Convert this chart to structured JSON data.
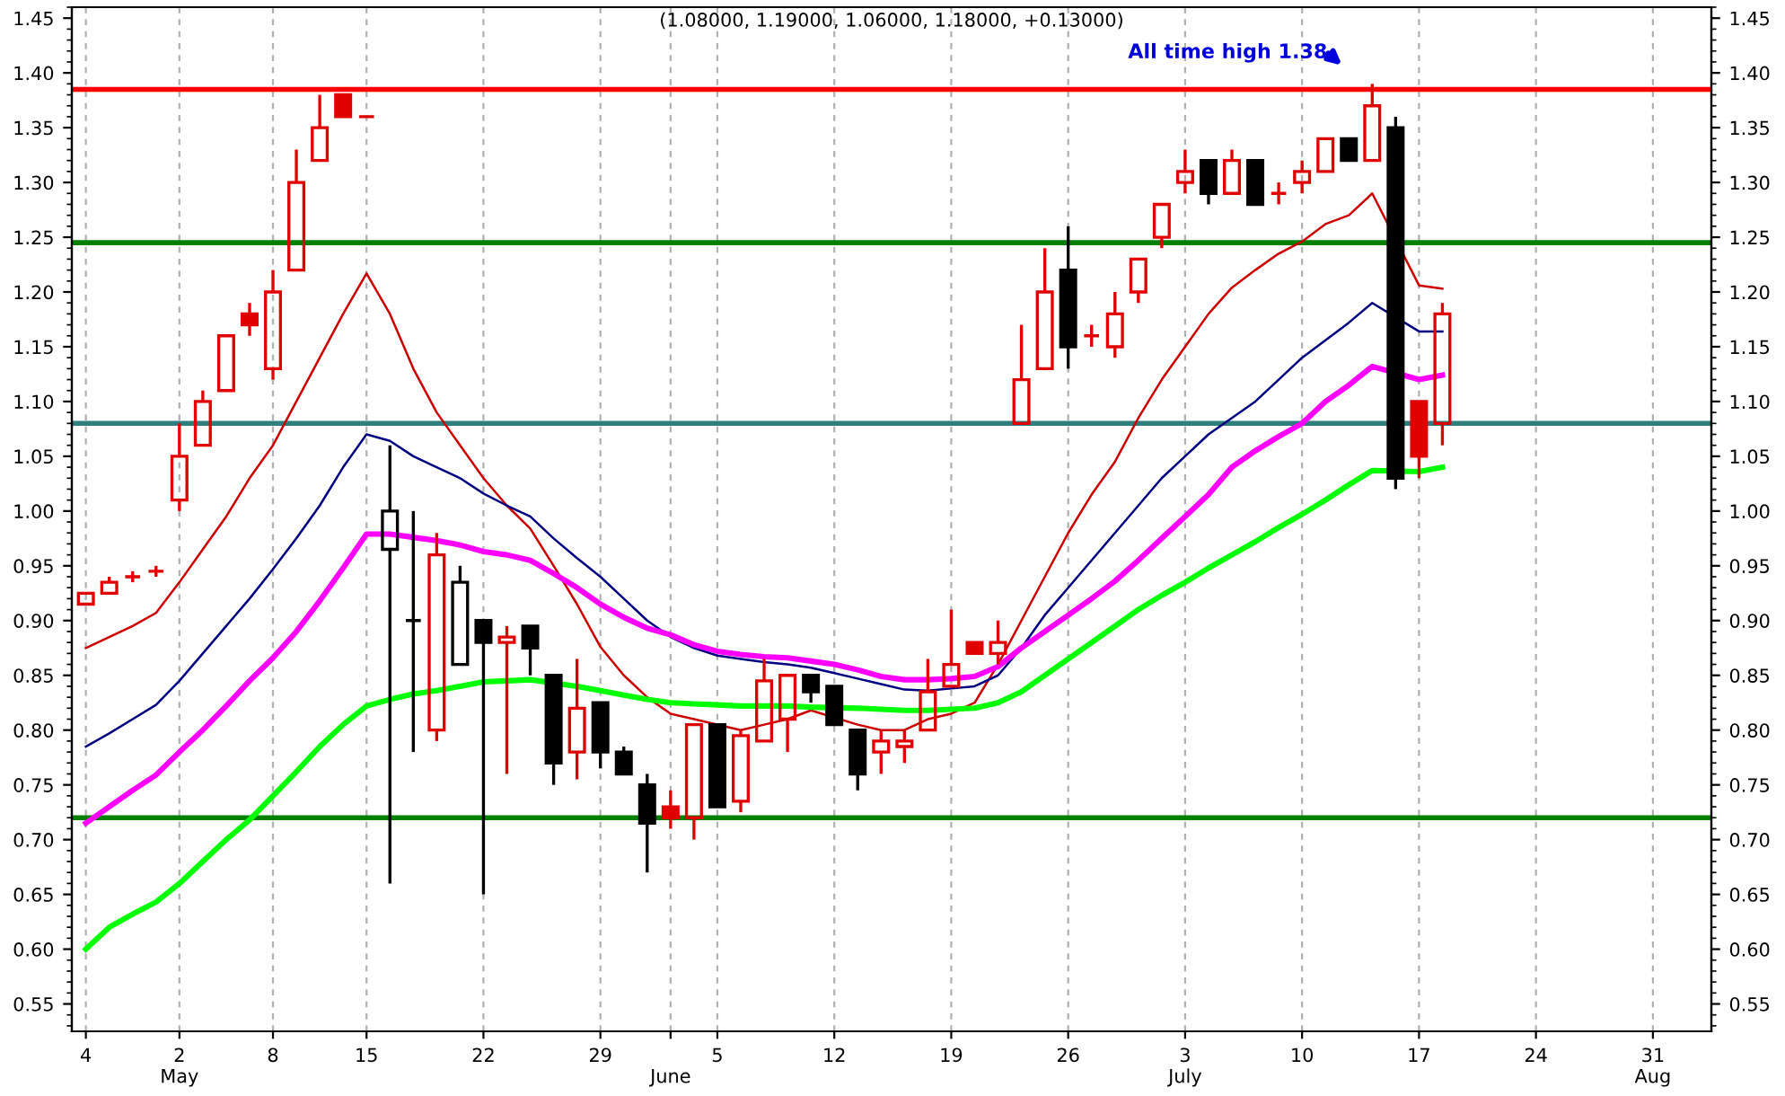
{
  "chart_data": {
    "type": "candlestick",
    "title": "(1.08000, 1.19000, 1.06000, 1.18000, +0.13000)",
    "annotations": [
      "All time high 1.38"
    ],
    "categories": [
      "4",
      null,
      null,
      null,
      "2\nMay",
      null,
      null,
      null,
      "8",
      null,
      null,
      null,
      "15",
      null,
      null,
      null,
      null,
      "22",
      null,
      null,
      null,
      null,
      "29",
      null,
      null,
      "\nJune",
      null,
      "5",
      null,
      null,
      null,
      null,
      "12",
      null,
      null,
      null,
      null,
      "19",
      null,
      null,
      null,
      null,
      "26",
      null,
      null,
      null,
      null,
      "3\nJuly",
      null,
      null,
      null,
      null,
      "10",
      null,
      null,
      null,
      null,
      "17",
      null,
      null,
      null,
      null,
      "24",
      null,
      null,
      null,
      null,
      "31\nAug",
      null,
      null
    ],
    "ohlc": [
      [
        0.915,
        0.925,
        0.915,
        0.925
      ],
      [
        0.925,
        0.94,
        0.925,
        0.935
      ],
      [
        0.94,
        0.945,
        0.935,
        0.94
      ],
      [
        0.945,
        0.95,
        0.94,
        0.945
      ],
      [
        1.01,
        1.08,
        1.0,
        1.05
      ],
      [
        1.06,
        1.11,
        1.06,
        1.1
      ],
      [
        1.11,
        1.16,
        1.11,
        1.16
      ],
      [
        1.18,
        1.19,
        1.16,
        1.17
      ],
      [
        1.13,
        1.22,
        1.12,
        1.2
      ],
      [
        1.22,
        1.33,
        1.22,
        1.3
      ],
      [
        1.32,
        1.38,
        1.32,
        1.35
      ],
      [
        1.38,
        1.38,
        1.36,
        1.36
      ],
      [
        1.36,
        1.36,
        1.36,
        1.36
      ],
      [
        0.965,
        1.06,
        0.66,
        1.0
      ],
      [
        0.9,
        1.0,
        0.78,
        0.9
      ],
      [
        0.8,
        0.98,
        0.79,
        0.96
      ],
      [
        0.86,
        0.95,
        0.86,
        0.935
      ],
      [
        0.9,
        0.9,
        0.65,
        0.88
      ],
      [
        0.88,
        0.895,
        0.76,
        0.885
      ],
      [
        0.895,
        0.895,
        0.85,
        0.875
      ],
      [
        0.85,
        0.85,
        0.75,
        0.77
      ],
      [
        0.78,
        0.865,
        0.755,
        0.82
      ],
      [
        0.825,
        0.825,
        0.765,
        0.78
      ],
      [
        0.78,
        0.785,
        0.76,
        0.76
      ],
      [
        0.75,
        0.76,
        0.67,
        0.715
      ],
      [
        0.73,
        0.745,
        0.71,
        0.72
      ],
      [
        0.72,
        0.805,
        0.7,
        0.805
      ],
      [
        0.805,
        0.805,
        0.73,
        0.73
      ],
      [
        0.735,
        0.8,
        0.725,
        0.795
      ],
      [
        0.79,
        0.865,
        0.79,
        0.845
      ],
      [
        0.81,
        0.85,
        0.78,
        0.85
      ],
      [
        0.85,
        0.85,
        0.825,
        0.835
      ],
      [
        0.84,
        0.84,
        0.805,
        0.805
      ],
      [
        0.8,
        0.8,
        0.745,
        0.76
      ],
      [
        0.78,
        0.8,
        0.76,
        0.79
      ],
      [
        0.785,
        0.8,
        0.77,
        0.79
      ],
      [
        0.8,
        0.865,
        0.8,
        0.835
      ],
      [
        0.84,
        0.91,
        0.84,
        0.86
      ],
      [
        0.88,
        0.88,
        0.87,
        0.87
      ],
      [
        0.87,
        0.9,
        0.86,
        0.88
      ],
      [
        1.08,
        1.17,
        1.08,
        1.12
      ],
      [
        1.13,
        1.24,
        1.13,
        1.2
      ],
      [
        1.22,
        1.26,
        1.13,
        1.15
      ],
      [
        1.16,
        1.17,
        1.15,
        1.16
      ],
      [
        1.15,
        1.2,
        1.14,
        1.18
      ],
      [
        1.2,
        1.23,
        1.19,
        1.23
      ],
      [
        1.25,
        1.28,
        1.24,
        1.28
      ],
      [
        1.3,
        1.33,
        1.29,
        1.31
      ],
      [
        1.32,
        1.32,
        1.28,
        1.29
      ],
      [
        1.29,
        1.33,
        1.29,
        1.32
      ],
      [
        1.32,
        1.32,
        1.28,
        1.28
      ],
      [
        1.29,
        1.3,
        1.28,
        1.29
      ],
      [
        1.3,
        1.32,
        1.29,
        1.31
      ],
      [
        1.31,
        1.34,
        1.31,
        1.34
      ],
      [
        1.34,
        1.34,
        1.32,
        1.32
      ],
      [
        1.32,
        1.39,
        1.32,
        1.37
      ],
      [
        1.35,
        1.36,
        1.02,
        1.03
      ],
      [
        1.1,
        1.1,
        1.03,
        1.05
      ],
      [
        1.08,
        1.19,
        1.06,
        1.18
      ],
      null,
      null,
      null,
      null,
      null,
      null,
      null,
      null,
      null,
      null,
      null
    ],
    "colors": [
      "#e00000",
      "#e00000",
      "#e00000",
      "#e00000",
      "#e00000",
      "#e00000",
      "#e00000",
      "#e00000",
      "#e00000",
      "#e00000",
      "#e00000",
      "#e00000",
      "#e00000",
      "#000000",
      "#000000",
      "#e00000",
      "#000000",
      "#000000",
      "#e00000",
      "#000000",
      "#000000",
      "#e00000",
      "#000000",
      "#000000",
      "#000000",
      "#e00000",
      "#e00000",
      "#000000",
      "#e00000",
      "#e00000",
      "#e00000",
      "#000000",
      "#000000",
      "#000000",
      "#e00000",
      "#e00000",
      "#e00000",
      "#e00000",
      "#e00000",
      "#e00000",
      "#e00000",
      "#e00000",
      "#000000",
      "#e00000",
      "#e00000",
      "#e00000",
      "#e00000",
      "#e00000",
      "#000000",
      "#e00000",
      "#000000",
      "#e00000",
      "#e00000",
      "#e00000",
      "#000000",
      "#e00000",
      "#000000",
      "#e00000",
      "#e00000",
      null,
      null,
      null,
      null,
      null,
      null,
      null,
      null,
      null,
      null,
      null
    ],
    "series": [
      {
        "type": "line",
        "color": "#cc0000",
        "values": [
          0.875,
          0.885,
          0.895,
          0.907,
          0.935,
          0.965,
          0.995,
          1.03,
          1.06,
          1.1,
          1.14,
          1.18,
          1.217,
          1.18,
          1.13,
          1.09,
          1.06,
          1.03,
          1.005,
          0.984,
          0.95,
          0.915,
          0.876,
          0.85,
          0.83,
          0.815,
          0.81,
          null,
          0.8,
          0.805,
          0.81,
          0.818,
          null,
          0.805,
          0.8,
          0.8,
          0.81,
          0.815,
          0.825,
          0.86,
          0.9,
          0.94,
          0.98,
          1.015,
          1.045,
          1.085,
          1.12,
          1.15,
          1.18,
          1.204,
          1.22,
          1.235,
          1.246,
          1.262,
          1.27,
          1.29,
          null,
          1.206,
          1.203,
          null,
          null,
          null,
          null,
          null,
          null,
          null,
          null,
          null,
          null,
          null
        ]
      },
      {
        "type": "line",
        "color": "#000080",
        "values": [
          0.785,
          0.797,
          0.81,
          0.823,
          0.845,
          0.87,
          0.895,
          0.92,
          0.947,
          0.975,
          1.005,
          1.04,
          1.07,
          1.064,
          1.05,
          1.04,
          1.03,
          1.016,
          1.005,
          0.995,
          0.975,
          0.957,
          0.94,
          0.92,
          0.9,
          0.885,
          0.875,
          0.868,
          0.865,
          0.862,
          0.86,
          0.857,
          0.852,
          0.847,
          0.842,
          0.837,
          0.836,
          0.838,
          0.84,
          0.85,
          0.875,
          0.905,
          0.93,
          0.955,
          0.98,
          1.005,
          1.03,
          1.05,
          1.07,
          1.085,
          1.1,
          1.12,
          1.14,
          1.156,
          1.172,
          1.19,
          null,
          1.164,
          1.164,
          null,
          null,
          null,
          null,
          null,
          null,
          null,
          null,
          null,
          null,
          null
        ]
      },
      {
        "type": "line",
        "color": "#ff00ff",
        "values": [
          0.715,
          0.73,
          0.745,
          0.759,
          0.78,
          0.8,
          0.822,
          0.845,
          0.866,
          0.89,
          0.918,
          0.948,
          0.979,
          0.979,
          0.976,
          0.973,
          0.969,
          0.963,
          0.96,
          0.955,
          0.943,
          0.93,
          0.915,
          0.903,
          0.893,
          0.887,
          0.878,
          0.872,
          0.869,
          0.867,
          0.866,
          0.863,
          0.86,
          0.855,
          0.849,
          0.846,
          0.846,
          0.847,
          0.849,
          0.858,
          0.875,
          0.89,
          0.905,
          0.92,
          0.936,
          0.955,
          0.975,
          0.995,
          1.015,
          1.04,
          1.055,
          1.068,
          1.08,
          1.1,
          1.115,
          1.132,
          null,
          1.12,
          1.124,
          null,
          null,
          null,
          null,
          null,
          null,
          null,
          null,
          null,
          null,
          null
        ]
      },
      {
        "type": "line",
        "color": "#00ff00",
        "values": [
          0.6,
          0.62,
          0.632,
          0.643,
          0.66,
          0.68,
          0.7,
          0.718,
          0.74,
          0.762,
          0.785,
          0.805,
          0.822,
          0.828,
          0.833,
          0.836,
          0.84,
          0.844,
          0.845,
          0.846,
          null,
          0.84,
          0.836,
          0.832,
          0.828,
          0.825,
          0.824,
          0.823,
          0.822,
          0.822,
          0.822,
          0.821,
          null,
          0.82,
          0.819,
          0.818,
          0.818,
          0.819,
          0.82,
          0.825,
          0.835,
          0.85,
          0.865,
          0.88,
          0.895,
          0.91,
          0.923,
          0.935,
          0.948,
          0.96,
          0.972,
          0.985,
          0.997,
          1.01,
          1.024,
          1.037,
          null,
          1.036,
          1.04,
          null,
          null,
          null,
          null,
          null,
          null,
          null,
          null,
          null,
          null,
          null
        ]
      }
    ],
    "ref_lines": [
      {
        "axis": "y",
        "value": 1.385,
        "color": "#ff0000"
      },
      {
        "axis": "y",
        "value": 1.245,
        "color": "#008000"
      },
      {
        "axis": "y",
        "value": 1.08,
        "color": "#2f7f7f"
      },
      {
        "axis": "y",
        "value": 0.72,
        "color": "#008000"
      }
    ],
    "ylim": [
      0.525,
      1.46
    ],
    "yticks": [
      {
        "value": 0.55,
        "label": "0.55"
      },
      {
        "value": 0.6,
        "label": "0.60"
      },
      {
        "value": 0.65,
        "label": "0.65"
      },
      {
        "value": 0.7,
        "label": "0.70"
      },
      {
        "value": 0.75,
        "label": "0.75"
      },
      {
        "value": 0.8,
        "label": "0.80"
      },
      {
        "value": 0.85,
        "label": "0.85"
      },
      {
        "value": 0.9,
        "label": "0.90"
      },
      {
        "value": 0.95,
        "label": "0.95"
      },
      {
        "value": 1.0,
        "label": "1.00"
      },
      {
        "value": 1.05,
        "label": "1.05"
      },
      {
        "value": 1.1,
        "label": "1.10"
      },
      {
        "value": 1.15,
        "label": "1.15"
      },
      {
        "value": 1.2,
        "label": "1.20"
      },
      {
        "value": 1.25,
        "label": "1.25"
      },
      {
        "value": 1.3,
        "label": "1.30"
      },
      {
        "value": 1.35,
        "label": "1.35"
      },
      {
        "value": 1.4,
        "label": "1.40"
      },
      {
        "value": 1.45,
        "label": "1.45"
      }
    ],
    "y2lim": [
      0.525,
      1.46
    ],
    "y2ticks": [
      {
        "value": 0.55,
        "label": "0.55"
      },
      {
        "value": 0.6,
        "label": "0.60"
      },
      {
        "value": 0.65,
        "label": "0.65"
      },
      {
        "value": 0.7,
        "label": "0.70"
      },
      {
        "value": 0.75,
        "label": "0.75"
      },
      {
        "value": 0.8,
        "label": "0.80"
      },
      {
        "value": 0.85,
        "label": "0.85"
      },
      {
        "value": 0.9,
        "label": "0.90"
      },
      {
        "value": 0.95,
        "label": "0.95"
      },
      {
        "value": 1.0,
        "label": "1.00"
      },
      {
        "value": 1.05,
        "label": "1.05"
      },
      {
        "value": 1.1,
        "label": "1.10"
      },
      {
        "value": 1.15,
        "label": "1.15"
      },
      {
        "value": 1.2,
        "label": "1.20"
      },
      {
        "value": 1.25,
        "label": "1.25"
      },
      {
        "value": 1.3,
        "label": "1.30"
      },
      {
        "value": 1.35,
        "label": "1.35"
      },
      {
        "value": 1.4,
        "label": "1.40"
      },
      {
        "value": 1.45,
        "label": "1.45"
      }
    ],
    "grid": "x"
  }
}
